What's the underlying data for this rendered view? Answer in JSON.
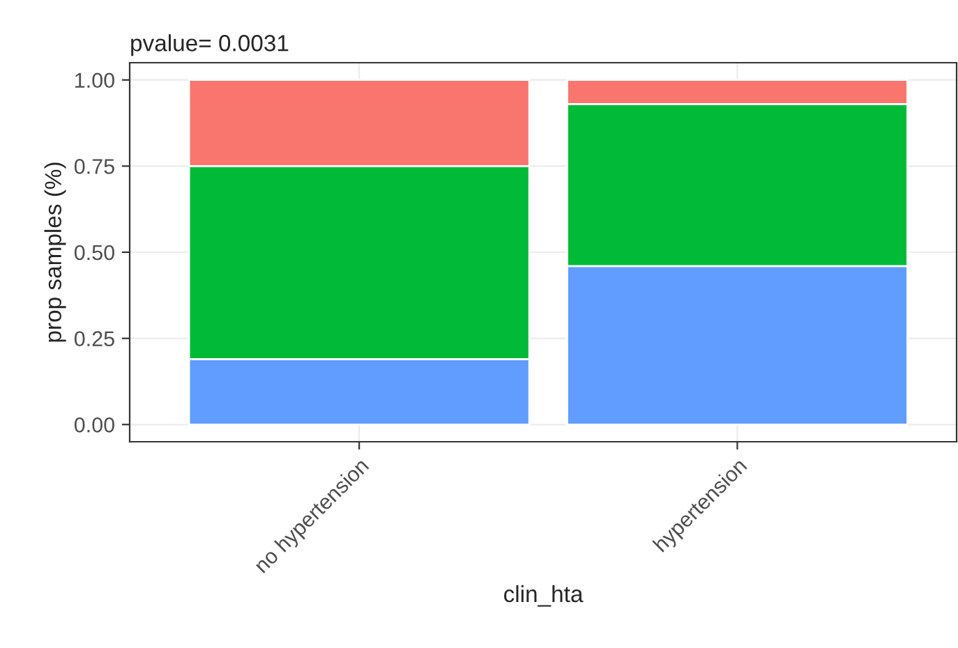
{
  "chart_data": {
    "type": "bar",
    "title": "pvalue= 0.0031",
    "xlabel": "clin_hta",
    "ylabel": "prop samples (%)",
    "categories": [
      "no hypertension",
      "hypertension"
    ],
    "stacked": true,
    "series": [
      {
        "color": "#619cff",
        "values": [
          0.19,
          0.46
        ]
      },
      {
        "color": "#00ba38",
        "values": [
          0.56,
          0.47
        ]
      },
      {
        "color": "#f8766d",
        "values": [
          0.25,
          0.07
        ]
      }
    ],
    "ylim": [
      -0.05,
      1.05
    ],
    "yticks": [
      {
        "value": 0,
        "label": "0.00"
      },
      {
        "value": 0.25,
        "label": "0.25"
      },
      {
        "value": 0.5,
        "label": "0.50"
      },
      {
        "value": 0.75,
        "label": "0.75"
      },
      {
        "value": 1,
        "label": "1.00"
      }
    ],
    "grid": true
  }
}
